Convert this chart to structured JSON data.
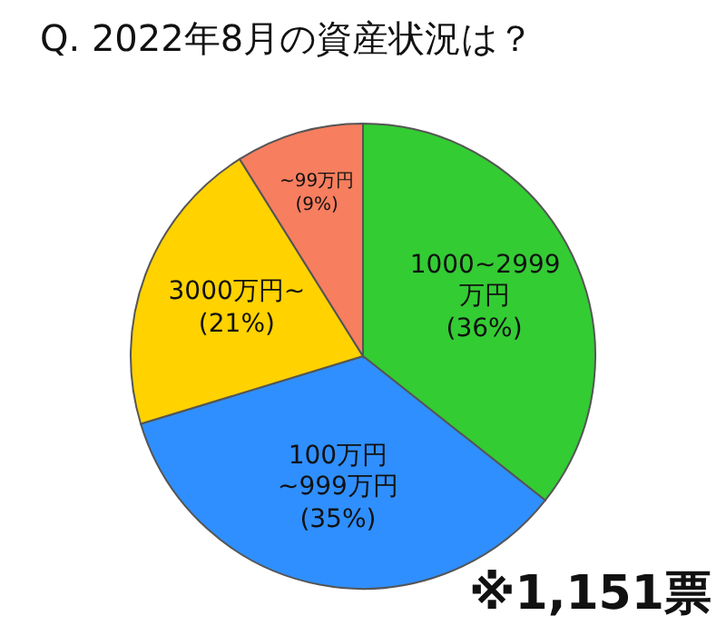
{
  "chart_data": {
    "type": "pie",
    "title": "Q. 2022年8月の資産状況は？",
    "categories": [
      "1000~2999万円",
      "100万円~999万円",
      "3000万円~",
      "~99万円"
    ],
    "values": [
      36,
      35,
      21,
      9
    ],
    "value_labels": [
      "(36%)",
      "(35%)",
      "(21%)",
      "(9%)"
    ],
    "colors": [
      "#33cc33",
      "#2f8fff",
      "#ffd200",
      "#f77e5e"
    ],
    "annotations": [
      "※1,151票"
    ]
  }
}
